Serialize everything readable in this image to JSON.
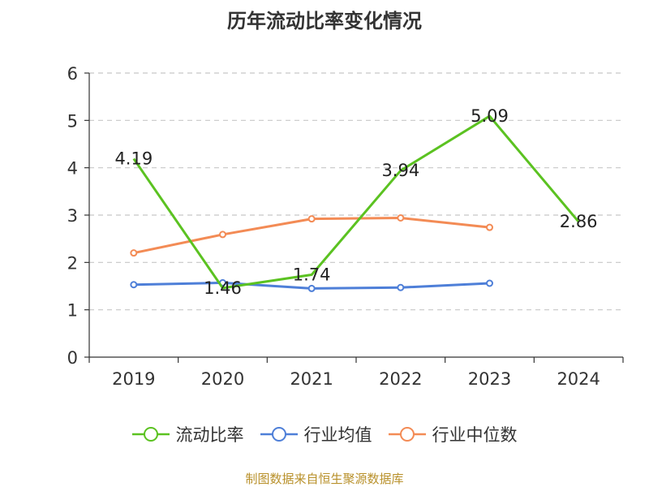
{
  "chart_data": {
    "type": "line",
    "title": "历年流动比率变化情况",
    "categories": [
      "2019",
      "2020",
      "2021",
      "2022",
      "2023",
      "2024"
    ],
    "ylim": [
      0,
      6
    ],
    "yticks": [
      0,
      1,
      2,
      3,
      4,
      5,
      6
    ],
    "grid": true,
    "legend_position": "bottom",
    "series": [
      {
        "name": "流动比率",
        "color": "#5bc221",
        "values": [
          4.19,
          1.46,
          1.74,
          3.94,
          5.09,
          2.86
        ],
        "show_labels": true
      },
      {
        "name": "行业均值",
        "color": "#4e7fd8",
        "values": [
          1.53,
          1.57,
          1.45,
          1.47,
          1.56,
          null
        ],
        "show_labels": false
      },
      {
        "name": "行业中位数",
        "color": "#f38b55",
        "values": [
          2.2,
          2.59,
          2.92,
          2.94,
          2.74,
          null
        ],
        "show_labels": false
      }
    ]
  },
  "legend": {
    "items": [
      {
        "label": "流动比率",
        "color": "#5bc221"
      },
      {
        "label": "行业均值",
        "color": "#4e7fd8"
      },
      {
        "label": "行业中位数",
        "color": "#f38b55"
      }
    ]
  },
  "source": "制图数据来自恒生聚源数据库"
}
